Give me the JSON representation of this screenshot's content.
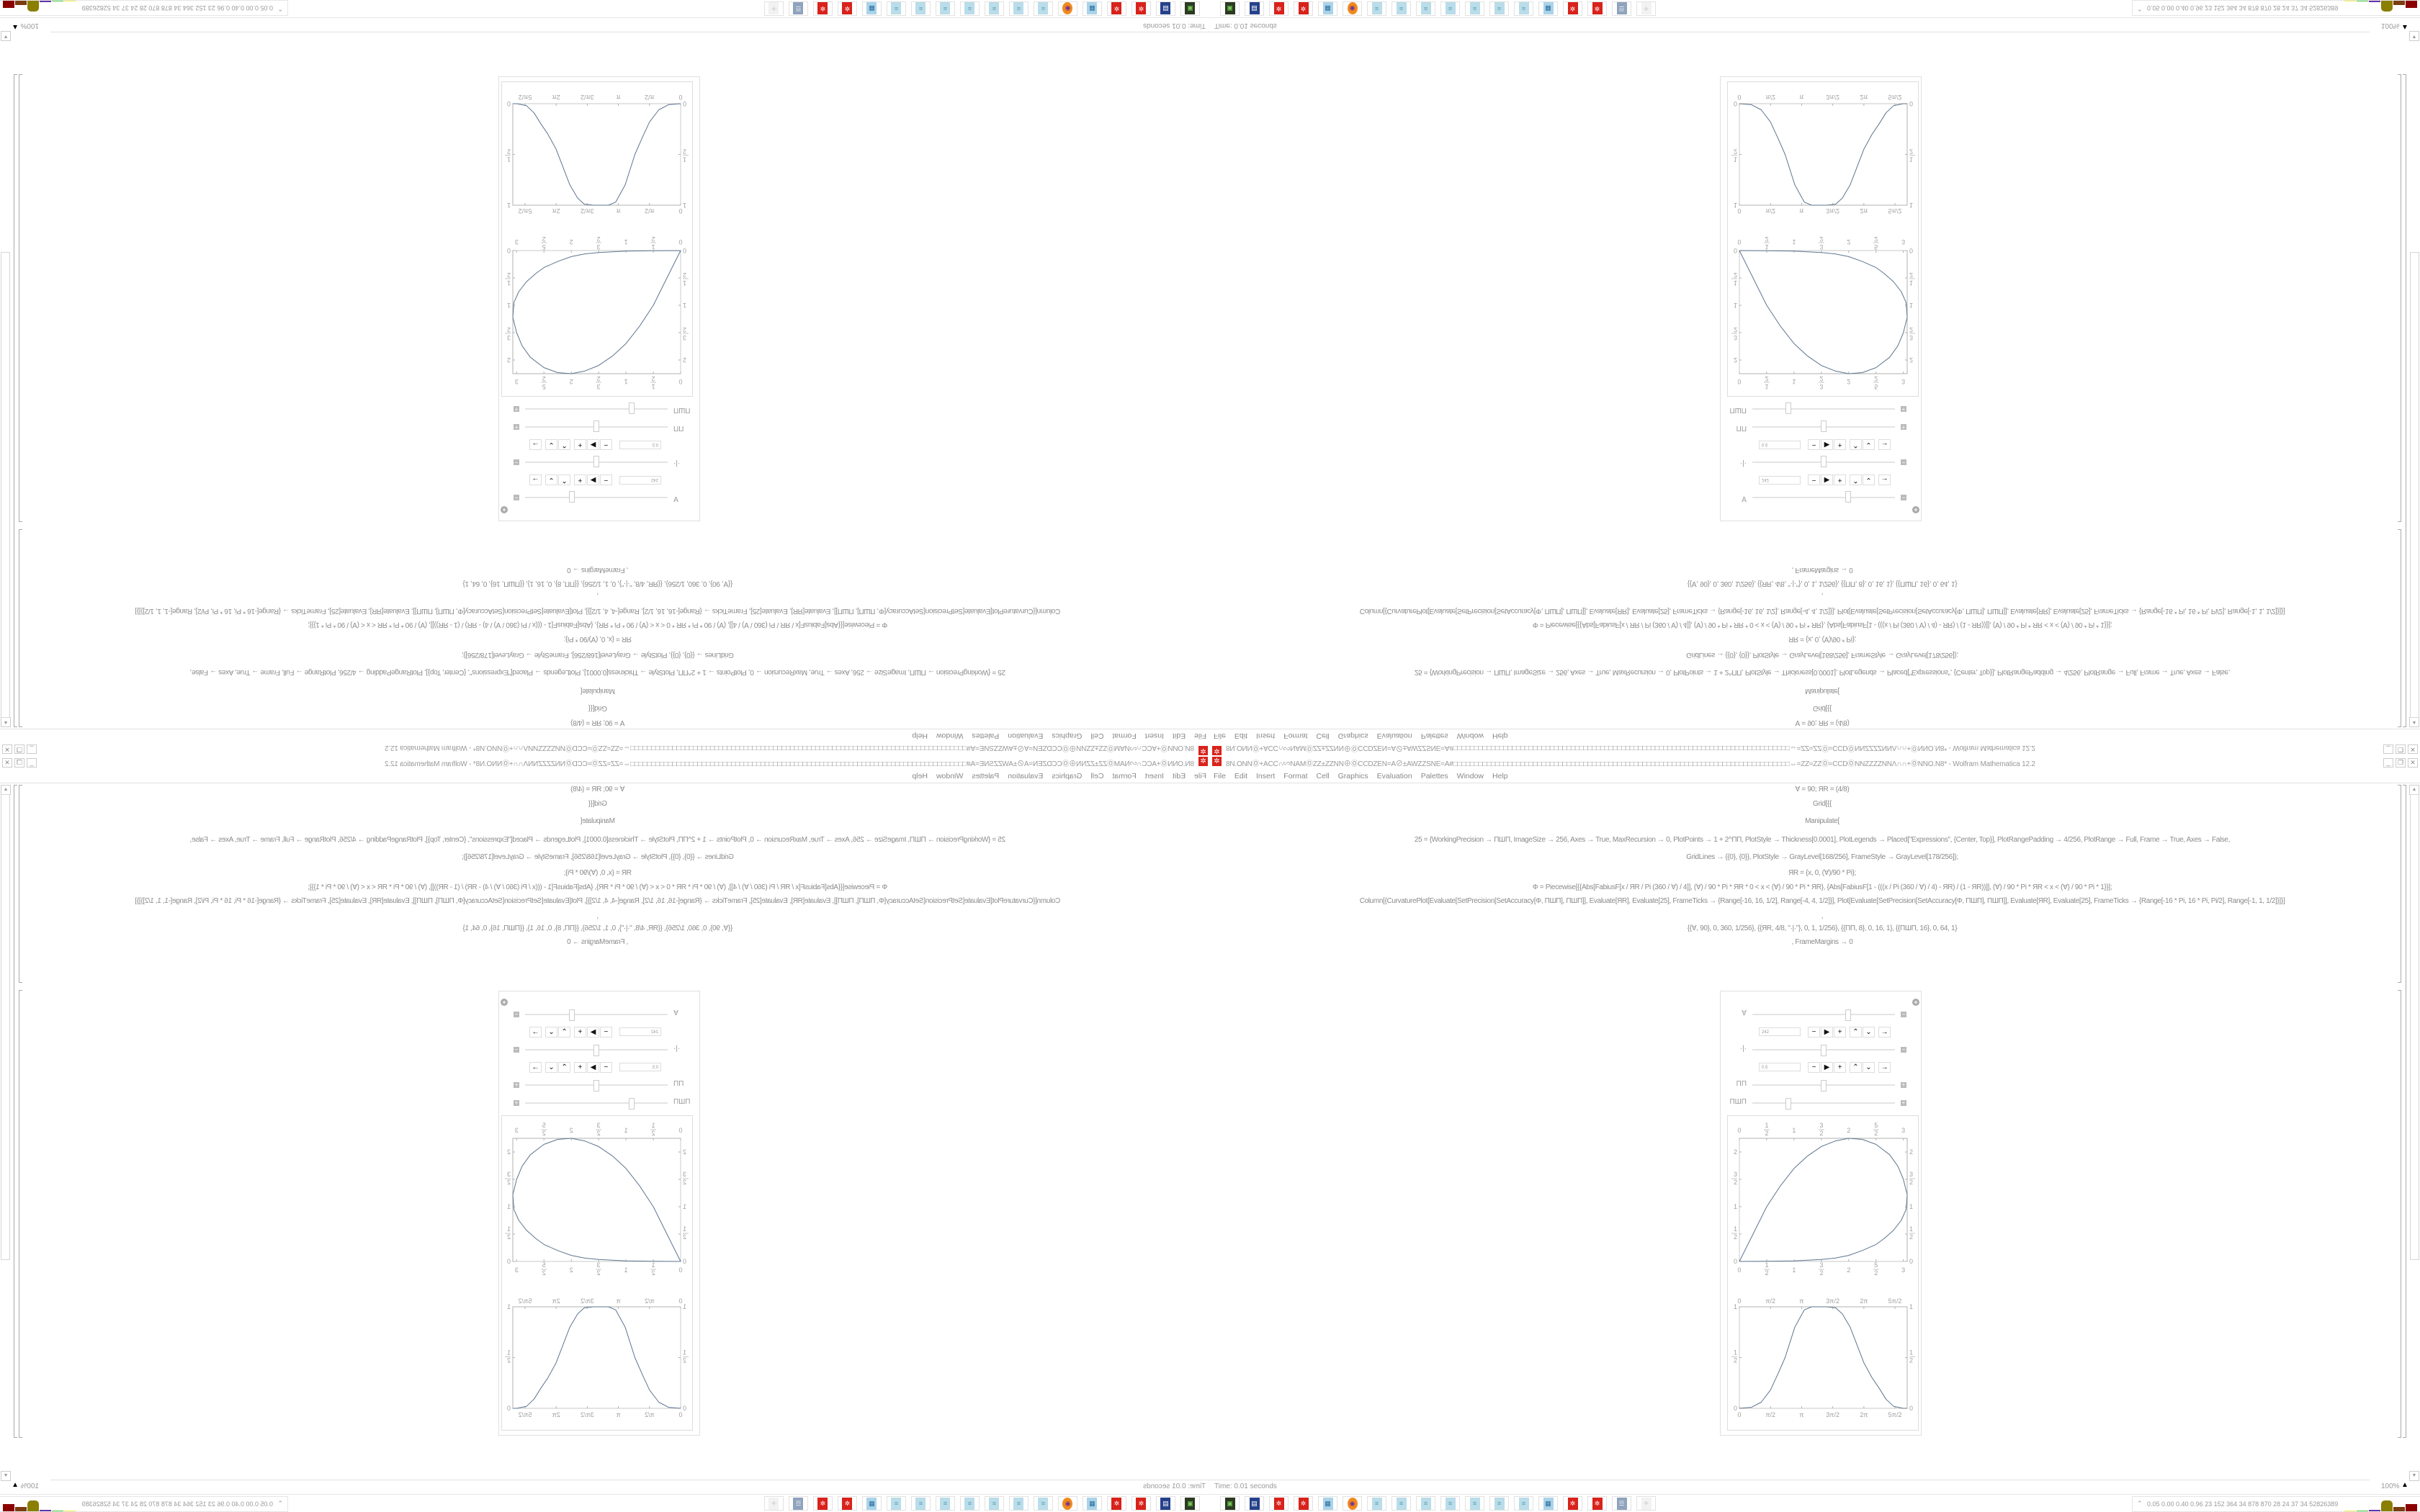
{
  "window": {
    "title": "8N.ONNⓄ+ACC∩∽NAMⓄZZ±ZZNN⊕ⓄCCDZEN=A⊘±AWZZSNE=A#□□□□□□□□□□□□□□□□□□□□□□□□□□□□□□□□□□□□□□□□□□□□□□□□□□□□□□□□□□□□□□□□□□□□□□□□□□□□□□□□⇔=ZZ≈ZZⓄ≈CCDⓄNNZZZZNNΛ∩∩+ⓄNNO.N8* - Wolfram Mathematica 12.2",
    "controls": {
      "minimize": "_",
      "restore": "❐",
      "close": "✕"
    }
  },
  "menu": [
    "File",
    "Edit",
    "Insert",
    "Format",
    "Cell",
    "Graphics",
    "Evaluation",
    "Palettes",
    "Window",
    "Help"
  ],
  "notebook": {
    "code_lines": [
      "Ɐ = 90; ЯR = (4/8)",
      "Grid[{{",
      "Manipulate[",
      "25 = {WorkingPrecision → ПШП, ImageSize → 256, Axes → True, MaxRecursion → 0, PlotPoints → 1 + 2^ПП, PlotStyle → Thickness[0.0001], PlotLegends → Placed[\"Expressions\", {Center, Top}], PlotRangePadding → 4/256, PlotRange → Full, Frame → True, Axes → False,",
      "GridLines → {{0}, {0}}, PlotStyle → GrayLevel[168/256], FrameStyle → GrayLevel[178/256]};",
      "ЯR = {x, 0, (Ɐ)/90 * Pi};",
      "Φ = Piecewise[{{Abs[FabiusF[x / ЯR / Pi (360 / Ɐ) / 4]], (Ɐ) / 90 * Pi * ЯR * 0 < x < (Ɐ) / 90 * Pi * ЯR}, {Abs[FabiusF[1 - (((x / Pi (360 / Ɐ) / 4) - ЯR) / (1 - ЯR))]], (Ɐ) / 90 * Pi * ЯR < x < (Ɐ) / 90 * Pi * 1}}];",
      "Column[{CurvaturePlot[Evaluate[SetPrecision[SetAccuracy[Φ, ПШП], ПШП]], Evaluate[ЯR], Evaluate[25], FrameTicks → {Range[-16, 16, 1/2], Range[-4, 4, 1/2]}], Plot[Evaluate[SetPrecision[SetAccuracy[Φ, ПШП], ПШП]], Evaluate[ЯR], Evaluate[25], FrameTicks → {Range[-16 * Pi, 16 * Pi, Pi/2], Range[-1, 1, 1/2]}]}]",
      ",",
      "{{Ɐ, 90}, 0, 360, 1/256}, {{ЯR, 4/8, \"·|·\"}, 0, 1, 1/256}, {{ПП, 8}, 0, 16, 1}, {{ПШП, 16}, 0, 64, 1}",
      ", FrameMargins → 0"
    ]
  },
  "manipulate": {
    "controls": [
      {
        "label": "Ɐ",
        "value": 242,
        "min": 0,
        "max": 360,
        "input_value": "242",
        "expanded": true
      },
      {
        "label": "·|·",
        "value": 0.5,
        "min": 0,
        "max": 1,
        "input_value": "0.5",
        "expanded": true
      },
      {
        "label": "ПП",
        "value": 8,
        "min": 0,
        "max": 16,
        "expanded": false
      },
      {
        "label": "ПШП",
        "value": 16,
        "min": 0,
        "max": 64,
        "expanded": false
      }
    ],
    "anim_buttons": [
      "−",
      "▶",
      "+",
      "⌃",
      "⌄",
      "→"
    ]
  },
  "chart_data": [
    {
      "type": "line",
      "curve": "parametric",
      "xlim": [
        0,
        3.07
      ],
      "ylim": [
        0,
        2.25
      ],
      "x_ticks": [
        {
          "v": 0,
          "label": "0"
        },
        {
          "v": 0.5,
          "label": "1/2"
        },
        {
          "v": 1,
          "label": "1"
        },
        {
          "v": 1.5,
          "label": "3/2"
        },
        {
          "v": 2,
          "label": "2"
        },
        {
          "v": 2.5,
          "label": "5/2"
        },
        {
          "v": 3,
          "label": "3"
        }
      ],
      "y_ticks": [
        {
          "v": 0,
          "label": "0"
        },
        {
          "v": 0.5,
          "label": "1/2"
        },
        {
          "v": 1,
          "label": "1"
        },
        {
          "v": 1.5,
          "label": "3/2"
        },
        {
          "v": 2,
          "label": "2"
        }
      ],
      "grid": false,
      "color": "#5e7590",
      "points": [
        [
          0,
          0
        ],
        [
          0.25,
          0.5
        ],
        [
          0.5,
          1.0
        ],
        [
          0.75,
          1.38
        ],
        [
          1,
          1.7
        ],
        [
          1.25,
          1.93
        ],
        [
          1.5,
          2.1
        ],
        [
          1.75,
          2.2
        ],
        [
          2,
          2.25
        ],
        [
          2.25,
          2.23
        ],
        [
          2.5,
          2.14
        ],
        [
          2.75,
          1.95
        ],
        [
          2.9,
          1.74
        ],
        [
          3.0,
          1.5
        ],
        [
          3.07,
          1.22
        ],
        [
          3.05,
          0.95
        ],
        [
          2.96,
          0.75
        ],
        [
          2.82,
          0.57
        ],
        [
          2.65,
          0.42
        ],
        [
          2.5,
          0.31
        ],
        [
          2.25,
          0.2
        ],
        [
          2,
          0.11
        ],
        [
          1.75,
          0.06
        ],
        [
          1.5,
          0.035
        ],
        [
          1,
          0.01
        ],
        [
          0.5,
          0.002
        ],
        [
          0,
          0
        ]
      ]
    },
    {
      "type": "line",
      "xlim": [
        0,
        8.47
      ],
      "ylim": [
        0,
        1
      ],
      "x_ticks": [
        {
          "v": 0,
          "label": "0"
        },
        {
          "v": 1.5708,
          "label": "π/2"
        },
        {
          "v": 3.1416,
          "label": "π"
        },
        {
          "v": 4.7124,
          "label": "3π/2"
        },
        {
          "v": 6.2832,
          "label": "2π"
        },
        {
          "v": 7.854,
          "label": "5π/2"
        }
      ],
      "y_ticks": [
        {
          "v": 0,
          "label": "0"
        },
        {
          "v": 0.5,
          "label": "1/2"
        },
        {
          "v": 1,
          "label": "1"
        }
      ],
      "grid": false,
      "color": "#5e7590",
      "points": [
        [
          0,
          0
        ],
        [
          0.61,
          0.01
        ],
        [
          1.1,
          0.06
        ],
        [
          1.57,
          0.18
        ],
        [
          1.95,
          0.34
        ],
        [
          2.31,
          0.5
        ],
        [
          2.8,
          0.8
        ],
        [
          3.28,
          0.97
        ],
        [
          3.65,
          1.0
        ],
        [
          4.4,
          1.0
        ],
        [
          4.86,
          0.99
        ],
        [
          5.2,
          0.93
        ],
        [
          5.59,
          0.8
        ],
        [
          6.28,
          0.45
        ],
        [
          6.7,
          0.3
        ],
        [
          7.05,
          0.2
        ],
        [
          7.4,
          0.09
        ],
        [
          7.78,
          0.02
        ],
        [
          8.27,
          0
        ],
        [
          8.47,
          0
        ]
      ]
    }
  ],
  "status": {
    "time": "Time: 0.01 seconds",
    "zoom": "100%"
  },
  "taskbar": {
    "icons": [
      "terminal",
      "floppy",
      "wolfram",
      "wolfram",
      "calculator",
      "firefox",
      "notepad",
      "notepad",
      "notepad",
      "notepad",
      "notepad",
      "notepad",
      "notepad",
      "calculator",
      "wolfram",
      "wolfram",
      "scroll",
      "faded-app"
    ],
    "tray_text": "0.05 0.00 0.40 0.96  23  152  364  34  878  870  28  24  37  34  52826389",
    "tray_colors": [
      "#f2ee4a",
      "#44cc44",
      "#6633aa",
      "#8a7f00",
      "#7a3d10",
      "#8b0000"
    ]
  }
}
